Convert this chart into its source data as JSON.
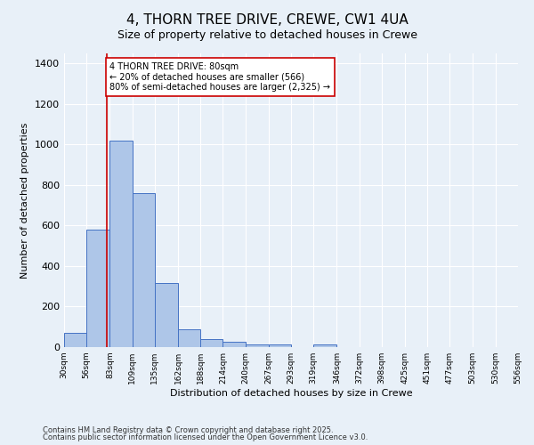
{
  "title": "4, THORN TREE DRIVE, CREWE, CW1 4UA",
  "subtitle": "Size of property relative to detached houses in Crewe",
  "xlabel": "Distribution of detached houses by size in Crewe",
  "ylabel": "Number of detached properties",
  "bin_edges": [
    30,
    56,
    83,
    109,
    135,
    162,
    188,
    214,
    240,
    267,
    293,
    319,
    346,
    372,
    398,
    425,
    451,
    477,
    503,
    530,
    556
  ],
  "bar_heights": [
    70,
    580,
    1020,
    760,
    315,
    90,
    38,
    25,
    12,
    12,
    0,
    12,
    0,
    0,
    0,
    0,
    0,
    0,
    0,
    0
  ],
  "bar_color": "#aec6e8",
  "bar_edge_color": "#4472c4",
  "background_color": "#e8f0f8",
  "grid_color": "#ffffff",
  "property_line_x": 80,
  "property_line_color": "#cc0000",
  "ylim": [
    0,
    1450
  ],
  "annotation_text": "4 THORN TREE DRIVE: 80sqm\n← 20% of detached houses are smaller (566)\n80% of semi-detached houses are larger (2,325) →",
  "annotation_box_color": "#ffffff",
  "annotation_box_edge_color": "#cc0000",
  "footer_line1": "Contains HM Land Registry data © Crown copyright and database right 2025.",
  "footer_line2": "Contains public sector information licensed under the Open Government Licence v3.0.",
  "title_fontsize": 11,
  "subtitle_fontsize": 9,
  "ylabel_fontsize": 8,
  "xlabel_fontsize": 8,
  "tick_fontsize": 6.5,
  "annotation_fontsize": 7,
  "footer_fontsize": 6,
  "tick_labels": [
    "30sqm",
    "56sqm",
    "83sqm",
    "109sqm",
    "135sqm",
    "162sqm",
    "188sqm",
    "214sqm",
    "240sqm",
    "267sqm",
    "293sqm",
    "319sqm",
    "346sqm",
    "372sqm",
    "398sqm",
    "425sqm",
    "451sqm",
    "477sqm",
    "503sqm",
    "530sqm",
    "556sqm"
  ]
}
